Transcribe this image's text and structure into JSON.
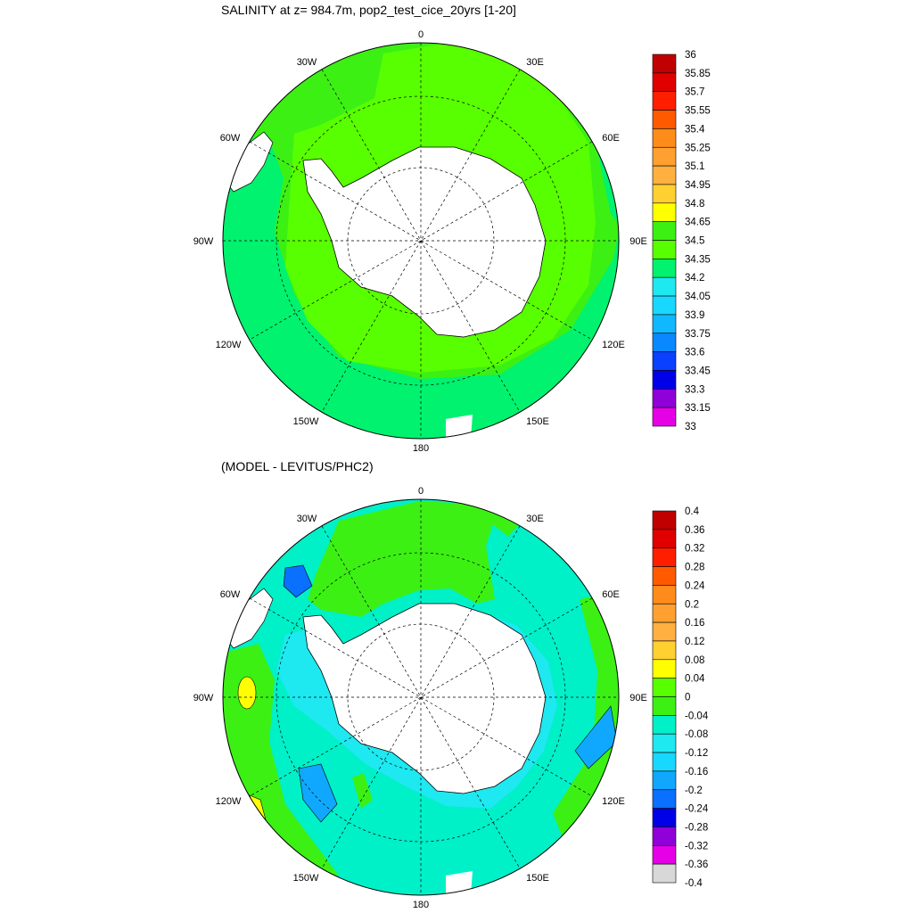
{
  "panels": [
    {
      "title": "SALINITY at z= 984.7m, pop2_test_cice_20yrs [1-20]",
      "lon_labels": [
        "0",
        "30E",
        "60E",
        "90E",
        "120E",
        "150E",
        "180",
        "150W",
        "120W",
        "90W",
        "60W",
        "30W"
      ],
      "colorbar": {
        "labels": [
          "36",
          "35.85",
          "35.7",
          "35.55",
          "35.4",
          "35.25",
          "35.1",
          "34.95",
          "34.8",
          "34.65",
          "34.5",
          "34.35",
          "34.2",
          "34.05",
          "33.9",
          "33.75",
          "33.6",
          "33.45",
          "33.3",
          "33.15",
          "33"
        ],
        "colors": [
          "#c00000",
          "#e10000",
          "#ff1f00",
          "#ff5a00",
          "#ff8c1a",
          "#ffa030",
          "#ffb040",
          "#ffd030",
          "#ffff00",
          "#3cf014",
          "#58ff00",
          "#00f26e",
          "#1ee8f0",
          "#18d8ff",
          "#10b8ff",
          "#0a88ff",
          "#0a40ff",
          "#0000e8",
          "#9000d8",
          "#e600e6",
          "#d8d8d8",
          "#707070"
        ]
      }
    },
    {
      "title": "(MODEL - LEVITUS/PHC2)",
      "lon_labels": [
        "0",
        "30E",
        "60E",
        "90E",
        "120E",
        "150E",
        "180",
        "150W",
        "120W",
        "90W",
        "60W",
        "30W"
      ],
      "colorbar": {
        "labels": [
          "0.4",
          "0.36",
          "0.32",
          "0.28",
          "0.24",
          "0.2",
          "0.16",
          "0.12",
          "0.08",
          "0.04",
          "0",
          "-0.04",
          "-0.08",
          "-0.12",
          "-0.16",
          "-0.2",
          "-0.24",
          "-0.28",
          "-0.32",
          "-0.36",
          "-0.4"
        ],
        "colors": [
          "#c00000",
          "#e10000",
          "#ff1f00",
          "#ff5a00",
          "#ff8c1a",
          "#ffa030",
          "#ffb040",
          "#ffd030",
          "#ffff00",
          "#58ff00",
          "#3cf014",
          "#00f0c8",
          "#1ee8f0",
          "#18d8ff",
          "#10a8ff",
          "#0a70ff",
          "#0000e8",
          "#9000d8",
          "#e600e6",
          "#d8d8d8",
          "#707070"
        ]
      }
    }
  ]
}
